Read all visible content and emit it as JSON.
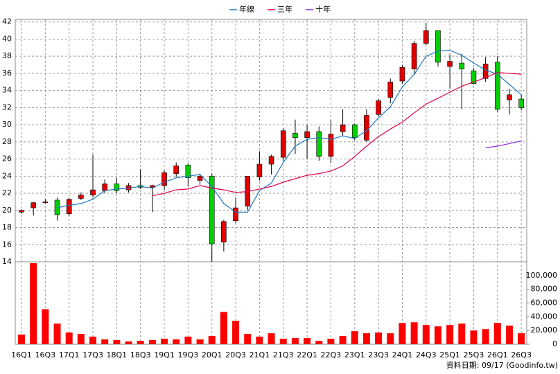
{
  "chart_data": {
    "type": "candlestick",
    "categories": [
      "16Q1",
      null,
      "16Q3",
      null,
      "17Q1",
      null,
      "17Q3",
      null,
      "18Q1",
      null,
      "18Q3",
      null,
      "19Q1",
      null,
      "19Q3",
      null,
      "20Q1",
      null,
      "20Q3",
      null,
      "21Q1",
      null,
      "21Q3",
      null,
      "22Q1",
      null,
      "22Q3",
      null,
      "23Q1",
      null,
      "23Q3",
      null,
      "24Q1",
      null,
      "24Q3",
      null,
      "25Q1",
      null,
      "25Q3",
      null,
      "26Q1",
      null,
      "26Q3"
    ],
    "open": [
      19.8,
      20.3,
      20.9,
      21.2,
      19.6,
      21.4,
      21.8,
      22.3,
      23.1,
      22.4,
      22.9,
      22.7,
      22.9,
      24.3,
      25.3,
      23.5,
      24.0,
      16.3,
      18.8,
      20.5,
      23.9,
      25.4,
      26.2,
      29.0,
      28.5,
      29.2,
      26.3,
      29.2,
      30.0,
      28.2,
      31.2,
      33.2,
      35.1,
      36.5,
      39.5,
      41.0,
      36.8,
      37.2,
      36.3,
      35.4,
      37.3,
      32.9,
      33.0
    ],
    "high": [
      20.1,
      21.0,
      21.3,
      21.5,
      21.5,
      22.1,
      26.5,
      23.6,
      23.8,
      23.2,
      24.8,
      23.0,
      24.7,
      25.6,
      25.5,
      24.3,
      24.3,
      18.9,
      21.5,
      24.0,
      26.9,
      26.5,
      29.6,
      30.6,
      30.0,
      29.8,
      30.6,
      31.8,
      30.1,
      31.8,
      33.0,
      35.4,
      37.0,
      39.8,
      41.9,
      41.0,
      38.2,
      38.3,
      36.6,
      37.9,
      38.0,
      34.2,
      33.5
    ],
    "low": [
      19.6,
      19.4,
      20.8,
      18.8,
      19.3,
      21.2,
      21.5,
      22.0,
      22.0,
      22.1,
      22.5,
      19.8,
      22.4,
      23.9,
      22.8,
      23.0,
      14.0,
      15.2,
      18.5,
      20.0,
      23.5,
      24.2,
      25.8,
      26.6,
      26.0,
      25.8,
      25.5,
      28.7,
      28.2,
      28.0,
      31.0,
      32.5,
      34.8,
      35.8,
      39.3,
      36.8,
      34.2,
      31.8,
      34.7,
      35.0,
      31.5,
      31.2,
      31.7
    ],
    "close": [
      20.0,
      20.9,
      21.0,
      19.5,
      21.3,
      21.8,
      22.4,
      23.1,
      22.3,
      22.9,
      22.7,
      22.9,
      24.4,
      25.2,
      23.8,
      24.0,
      16.1,
      18.7,
      20.3,
      24.0,
      25.4,
      26.3,
      29.3,
      28.5,
      29.2,
      26.3,
      28.9,
      30.0,
      28.5,
      31.1,
      32.8,
      35.0,
      36.7,
      39.5,
      41.0,
      37.3,
      37.4,
      36.5,
      34.8,
      37.1,
      31.8,
      33.5,
      32.0
    ],
    "volume": [
      14000,
      118000,
      51000,
      30000,
      17000,
      15000,
      11000,
      7000,
      6000,
      4000,
      5000,
      6000,
      8000,
      7000,
      11000,
      7000,
      12000,
      47000,
      34000,
      15000,
      11000,
      16000,
      8000,
      9000,
      9000,
      5000,
      8000,
      12000,
      19000,
      16000,
      17000,
      16000,
      31000,
      32000,
      28000,
      26000,
      28000,
      30000,
      20000,
      22000,
      31000,
      27000,
      16000
    ],
    "up_color": "#e00000",
    "down_color": "#00d000",
    "volume_color": "#ff0000",
    "series": [
      {
        "name": "年線",
        "color": "#1f77c4",
        "values": [
          null,
          null,
          null,
          20.3,
          20.6,
          20.8,
          21.3,
          22.3,
          22.5,
          22.6,
          22.8,
          22.6,
          23.3,
          23.8,
          24.0,
          24.2,
          22.8,
          20.8,
          19.8,
          19.8,
          22.3,
          23.2,
          25.6,
          27.5,
          28.3,
          28.5,
          28.3,
          28.7,
          28.4,
          29.3,
          30.8,
          32.1,
          34.4,
          35.9,
          38.0,
          38.6,
          38.7,
          38.1,
          37.2,
          36.4,
          35.9,
          34.7,
          33.5
        ]
      },
      {
        "name": "三年",
        "color": "#e0004a",
        "values": [
          null,
          null,
          null,
          null,
          null,
          null,
          null,
          null,
          null,
          null,
          null,
          21.7,
          22.0,
          22.4,
          22.5,
          22.9,
          22.6,
          22.4,
          22.1,
          22.2,
          22.5,
          22.8,
          23.3,
          23.7,
          24.1,
          24.3,
          24.6,
          25.2,
          26.3,
          27.5,
          28.6,
          29.5,
          30.3,
          31.4,
          32.4,
          33.1,
          33.8,
          34.5,
          35.0,
          35.5,
          36.1,
          36.0,
          35.9
        ]
      },
      {
        "name": "十年",
        "color": "#8a2be2",
        "values": [
          null,
          null,
          null,
          null,
          null,
          null,
          null,
          null,
          null,
          null,
          null,
          null,
          null,
          null,
          null,
          null,
          null,
          null,
          null,
          null,
          null,
          null,
          null,
          null,
          null,
          null,
          null,
          null,
          null,
          null,
          null,
          null,
          null,
          null,
          null,
          null,
          null,
          null,
          null,
          27.3,
          27.5,
          27.8,
          28.1
        ]
      }
    ],
    "ylim": [
      14,
      42.3
    ],
    "yticks": [
      14,
      16,
      18,
      20,
      22,
      24,
      26,
      28,
      30,
      32,
      34,
      36,
      38,
      40,
      42
    ],
    "y2lim": [
      0,
      120000
    ],
    "y2ticks": [
      0,
      {
        "value": 20000,
        "label": "20,000"
      },
      {
        "value": 40000,
        "label": "40,000"
      },
      {
        "value": 60000,
        "label": "60,000"
      },
      {
        "value": 80000,
        "label": "80,000"
      },
      {
        "value": 100000,
        "label": "100,000"
      }
    ],
    "grid": true,
    "footer": "資料日期: 09/17 (Goodinfo.tw)"
  }
}
